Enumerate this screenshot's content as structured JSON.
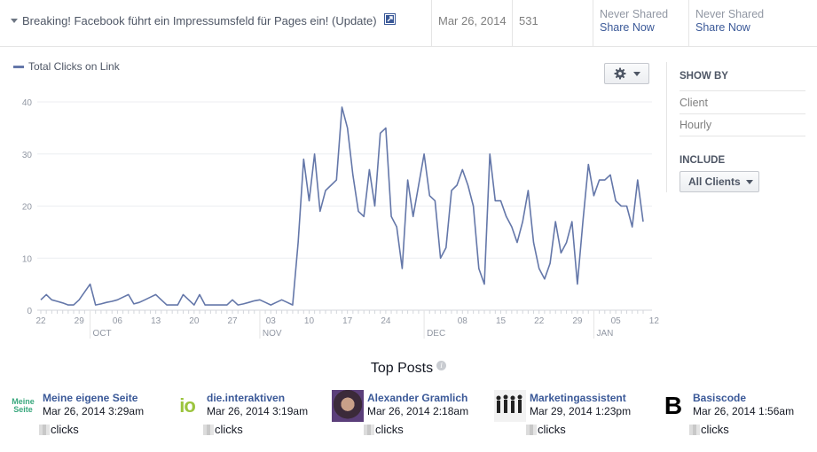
{
  "post_row": {
    "title": "Breaking! Facebook führt ein Impressumsfeld für Pages ein! (Update)",
    "date": "Mar 26, 2014",
    "count": "531",
    "share_cols": [
      {
        "status": "Never Shared",
        "action": "Share Now"
      },
      {
        "status": "Never Shared",
        "action": "Share Now"
      }
    ]
  },
  "toolbar": {
    "gear_icon": "gear-icon"
  },
  "side_panel": {
    "show_by_label": "SHOW BY",
    "show_by_options": [
      "Client",
      "Hourly"
    ],
    "include_label": "INCLUDE",
    "include_value": "All Clients"
  },
  "chart_data": {
    "type": "line",
    "ylim": [
      0,
      40
    ],
    "yticks": [
      0,
      10,
      20,
      30,
      40
    ],
    "x_day_ticks": [
      {
        "day": 0,
        "label": "22"
      },
      {
        "day": 7,
        "label": "29"
      },
      {
        "day": 14,
        "label": "06"
      },
      {
        "day": 21,
        "label": "13"
      },
      {
        "day": 28,
        "label": "20"
      },
      {
        "day": 35,
        "label": "27"
      },
      {
        "day": 42,
        "label": "03"
      },
      {
        "day": 49,
        "label": "10"
      },
      {
        "day": 56,
        "label": "17"
      },
      {
        "day": 63,
        "label": "24"
      },
      {
        "day": 77,
        "label": "08"
      },
      {
        "day": 84,
        "label": "15"
      },
      {
        "day": 91,
        "label": "22"
      },
      {
        "day": 98,
        "label": "29"
      },
      {
        "day": 105,
        "label": "05"
      },
      {
        "day": 112,
        "label": "12"
      }
    ],
    "x_month_ticks": [
      {
        "day": 9,
        "label": "OCT"
      },
      {
        "day": 40,
        "label": "NOV"
      },
      {
        "day": 70,
        "label": "DEC"
      },
      {
        "day": 101,
        "label": "JAN"
      }
    ],
    "series": [
      {
        "name": "Total Clicks on Link",
        "color": "#6477a9",
        "values": [
          2,
          3,
          2,
          1.7,
          1.4,
          1,
          1,
          2,
          3.5,
          5,
          1,
          1.2,
          1.5,
          1.7,
          2,
          2.5,
          3,
          1.2,
          1.5,
          2,
          2.5,
          3,
          2,
          1,
          1,
          1,
          3,
          2,
          1,
          3,
          1,
          1,
          1,
          1,
          1,
          2,
          1,
          1.2,
          1.5,
          1.8,
          2,
          1.5,
          1,
          1.5,
          2,
          1.5,
          1,
          13,
          29,
          21,
          30,
          19,
          23,
          24,
          25,
          39,
          35,
          26,
          19,
          18,
          27,
          20,
          34,
          35,
          18,
          16,
          8,
          25,
          18,
          24,
          30,
          22,
          21,
          10,
          12,
          23,
          24,
          27,
          24,
          20,
          8,
          5,
          30,
          21,
          21,
          18,
          16,
          13,
          17,
          23,
          13,
          8,
          6,
          9,
          17,
          11,
          13,
          17,
          5,
          17,
          28,
          22,
          25,
          25,
          26,
          21,
          20,
          20,
          16,
          25,
          17
        ]
      }
    ]
  },
  "top_posts": {
    "title": "Top Posts",
    "clicks_label": "clicks",
    "items": [
      {
        "name": "Meine eigene Seite",
        "date": "Mar 26, 2014 3:29am",
        "thumb_text": "Meine Seite"
      },
      {
        "name": "die.interaktiven",
        "date": "Mar 26, 2014 3:19am",
        "thumb_text": "io"
      },
      {
        "name": "Alexander Gramlich",
        "date": "Mar 26, 2014 2:18am"
      },
      {
        "name": "Marketingassistent",
        "date": "Mar 29, 2014 1:23pm"
      },
      {
        "name": "Basiscode",
        "date": "Mar 26, 2014 1:56am",
        "thumb_text": "B"
      }
    ]
  }
}
